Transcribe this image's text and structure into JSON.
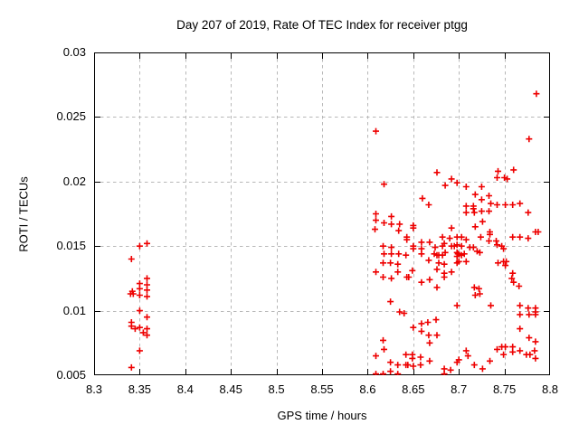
{
  "chart_data": {
    "type": "scatter",
    "title": "Day 207 of 2019, Rate Of TEC Index for receiver ptgg",
    "xlabel": "GPS time / hours",
    "ylabel": "ROTI / TECUs",
    "xlim": [
      8.3,
      8.8
    ],
    "ylim": [
      0.005,
      0.03
    ],
    "x_ticks": [
      8.3,
      8.35,
      8.4,
      8.45,
      8.5,
      8.55,
      8.6,
      8.65,
      8.7,
      8.75,
      8.8
    ],
    "x_tick_labels": [
      "8.3",
      "8.35",
      "8.4",
      "8.45",
      "8.5",
      "8.55",
      "8.6",
      "8.65",
      "8.7",
      "8.75",
      "8.8"
    ],
    "y_ticks": [
      0.005,
      0.01,
      0.015,
      0.02,
      0.025,
      0.03
    ],
    "y_tick_labels": [
      "0.005",
      "0.01",
      "0.015",
      "0.02",
      "0.025",
      "0.03"
    ],
    "grid": true,
    "legend": "none",
    "marker": "plus",
    "series": [
      {
        "name": "ROTI",
        "points": [
          [
            8.35,
            0.015
          ],
          [
            8.358,
            0.0152
          ],
          [
            8.341,
            0.014
          ],
          [
            8.358,
            0.0125
          ],
          [
            8.35,
            0.0121
          ],
          [
            8.358,
            0.012
          ],
          [
            8.342,
            0.0115
          ],
          [
            8.35,
            0.0117
          ],
          [
            8.34,
            0.0113
          ],
          [
            8.343,
            0.0113
          ],
          [
            8.35,
            0.0112
          ],
          [
            8.358,
            0.0116
          ],
          [
            8.358,
            0.0111
          ],
          [
            8.35,
            0.01
          ],
          [
            8.358,
            0.0095
          ],
          [
            8.341,
            0.0091
          ],
          [
            8.341,
            0.0088
          ],
          [
            8.35,
            0.0087
          ],
          [
            8.345,
            0.0086
          ],
          [
            8.358,
            0.0086
          ],
          [
            8.354,
            0.0083
          ],
          [
            8.358,
            0.0081
          ],
          [
            8.35,
            0.0069
          ],
          [
            8.341,
            0.0056
          ],
          [
            8.609,
            0.0239
          ],
          [
            8.785,
            0.0268
          ],
          [
            8.777,
            0.0233
          ],
          [
            8.618,
            0.0198
          ],
          [
            8.676,
            0.0207
          ],
          [
            8.692,
            0.0202
          ],
          [
            8.685,
            0.0197
          ],
          [
            8.66,
            0.0187
          ],
          [
            8.667,
            0.0182
          ],
          [
            8.609,
            0.0175
          ],
          [
            8.609,
            0.017
          ],
          [
            8.626,
            0.0173
          ],
          [
            8.618,
            0.0168
          ],
          [
            8.626,
            0.0167
          ],
          [
            8.635,
            0.0167
          ],
          [
            8.608,
            0.0163
          ],
          [
            8.634,
            0.0162
          ],
          [
            8.65,
            0.0166
          ],
          [
            8.65,
            0.0164
          ],
          [
            8.643,
            0.0157
          ],
          [
            8.643,
            0.0155
          ],
          [
            8.617,
            0.015
          ],
          [
            8.626,
            0.0149
          ],
          [
            8.65,
            0.015
          ],
          [
            8.65,
            0.0148
          ],
          [
            8.659,
            0.0153
          ],
          [
            8.668,
            0.0153
          ],
          [
            8.659,
            0.0148
          ],
          [
            8.692,
            0.0164
          ],
          [
            8.682,
            0.0157
          ],
          [
            8.69,
            0.0156
          ],
          [
            8.698,
            0.0157
          ],
          [
            8.703,
            0.0157
          ],
          [
            8.698,
            0.0151
          ],
          [
            8.674,
            0.0149
          ],
          [
            8.682,
            0.015
          ],
          [
            8.692,
            0.015
          ],
          [
            8.695,
            0.015
          ],
          [
            8.703,
            0.015
          ],
          [
            8.712,
            0.0149
          ],
          [
            8.673,
            0.0144
          ],
          [
            8.682,
            0.0143
          ],
          [
            8.698,
            0.0145
          ],
          [
            8.698,
            0.0142
          ],
          [
            8.703,
            0.0143
          ],
          [
            8.678,
            0.0137
          ],
          [
            8.698,
            0.0137
          ],
          [
            8.676,
            0.0132
          ],
          [
            8.684,
            0.0129
          ],
          [
            8.692,
            0.013
          ],
          [
            8.684,
            0.0152
          ],
          [
            8.743,
            0.0208
          ],
          [
            8.76,
            0.0209
          ],
          [
            8.742,
            0.0203
          ],
          [
            8.75,
            0.0203
          ],
          [
            8.753,
            0.0202
          ],
          [
            8.698,
            0.0199
          ],
          [
            8.708,
            0.0196
          ],
          [
            8.725,
            0.0196
          ],
          [
            8.718,
            0.019
          ],
          [
            8.733,
            0.0189
          ],
          [
            8.725,
            0.0186
          ],
          [
            8.735,
            0.0183
          ],
          [
            8.742,
            0.0182
          ],
          [
            8.751,
            0.0182
          ],
          [
            8.759,
            0.0182
          ],
          [
            8.767,
            0.0183
          ],
          [
            8.708,
            0.0181
          ],
          [
            8.716,
            0.0181
          ],
          [
            8.716,
            0.0179
          ],
          [
            8.725,
            0.0177
          ],
          [
            8.717,
            0.0176
          ],
          [
            8.708,
            0.0176
          ],
          [
            8.733,
            0.0177
          ],
          [
            8.776,
            0.0176
          ],
          [
            8.726,
            0.0169
          ],
          [
            8.718,
            0.0165
          ],
          [
            8.734,
            0.0161
          ],
          [
            8.734,
            0.0159
          ],
          [
            8.724,
            0.0157
          ],
          [
            8.708,
            0.0155
          ],
          [
            8.733,
            0.0154
          ],
          [
            8.741,
            0.0154
          ],
          [
            8.759,
            0.0157
          ],
          [
            8.767,
            0.0157
          ],
          [
            8.784,
            0.0161
          ],
          [
            8.787,
            0.0161
          ],
          [
            8.776,
            0.0156
          ],
          [
            8.742,
            0.0151
          ],
          [
            8.747,
            0.015
          ],
          [
            8.716,
            0.0149
          ],
          [
            8.749,
            0.0148
          ],
          [
            8.618,
            0.0144
          ],
          [
            8.626,
            0.0144
          ],
          [
            8.634,
            0.0144
          ],
          [
            8.642,
            0.0143
          ],
          [
            8.617,
            0.0137
          ],
          [
            8.625,
            0.0137
          ],
          [
            8.633,
            0.0136
          ],
          [
            8.609,
            0.013
          ],
          [
            8.617,
            0.0126
          ],
          [
            8.626,
            0.0125
          ],
          [
            8.633,
            0.013
          ],
          [
            8.643,
            0.0126
          ],
          [
            8.645,
            0.0126
          ],
          [
            8.649,
            0.0131
          ],
          [
            8.659,
            0.0144
          ],
          [
            8.667,
            0.0139
          ],
          [
            8.676,
            0.0143
          ],
          [
            8.678,
            0.0143
          ],
          [
            8.685,
            0.0145
          ],
          [
            8.684,
            0.0136
          ],
          [
            8.684,
            0.0126
          ],
          [
            8.659,
            0.0122
          ],
          [
            8.668,
            0.0124
          ],
          [
            8.676,
            0.0118
          ],
          [
            8.625,
            0.0107
          ],
          [
            8.635,
            0.0099
          ],
          [
            8.64,
            0.0098
          ],
          [
            8.65,
            0.0087
          ],
          [
            8.659,
            0.009
          ],
          [
            8.666,
            0.0091
          ],
          [
            8.675,
            0.0093
          ],
          [
            8.659,
            0.0084
          ],
          [
            8.667,
            0.0081
          ],
          [
            8.676,
            0.0081
          ],
          [
            8.668,
            0.0075
          ],
          [
            8.617,
            0.0077
          ],
          [
            8.618,
            0.007
          ],
          [
            8.609,
            0.0065
          ],
          [
            8.642,
            0.0066
          ],
          [
            8.649,
            0.0066
          ],
          [
            8.649,
            0.0063
          ],
          [
            8.658,
            0.0064
          ],
          [
            8.625,
            0.006
          ],
          [
            8.633,
            0.0058
          ],
          [
            8.642,
            0.0058
          ],
          [
            8.644,
            0.0058
          ],
          [
            8.65,
            0.0057
          ],
          [
            8.658,
            0.0058
          ],
          [
            8.668,
            0.0061
          ],
          [
            8.609,
            0.0051
          ],
          [
            8.617,
            0.0051
          ],
          [
            8.625,
            0.0053
          ],
          [
            8.633,
            0.0051
          ],
          [
            8.684,
            0.0055
          ],
          [
            8.691,
            0.0054
          ],
          [
            8.684,
            0.0051
          ],
          [
            8.699,
            0.0144
          ],
          [
            8.706,
            0.0144
          ],
          [
            8.72,
            0.0146
          ],
          [
            8.723,
            0.0145
          ],
          [
            8.7,
            0.0138
          ],
          [
            8.708,
            0.0138
          ],
          [
            8.743,
            0.0137
          ],
          [
            8.749,
            0.0138
          ],
          [
            8.752,
            0.0138
          ],
          [
            8.751,
            0.0135
          ],
          [
            8.759,
            0.0129
          ],
          [
            8.758,
            0.0125
          ],
          [
            8.76,
            0.0122
          ],
          [
            8.766,
            0.0119
          ],
          [
            8.717,
            0.0118
          ],
          [
            8.722,
            0.0117
          ],
          [
            8.723,
            0.0113
          ],
          [
            8.718,
            0.0112
          ],
          [
            8.735,
            0.0104
          ],
          [
            8.698,
            0.0104
          ],
          [
            8.767,
            0.0104
          ],
          [
            8.776,
            0.0102
          ],
          [
            8.784,
            0.0102
          ],
          [
            8.767,
            0.0097
          ],
          [
            8.777,
            0.0097
          ],
          [
            8.784,
            0.0097
          ],
          [
            8.784,
            0.0099
          ],
          [
            8.767,
            0.0086
          ],
          [
            8.777,
            0.0079
          ],
          [
            8.784,
            0.0076
          ],
          [
            8.742,
            0.007
          ],
          [
            8.747,
            0.0072
          ],
          [
            8.751,
            0.0072
          ],
          [
            8.749,
            0.0066
          ],
          [
            8.759,
            0.0072
          ],
          [
            8.759,
            0.0068
          ],
          [
            8.767,
            0.0069
          ],
          [
            8.774,
            0.0066
          ],
          [
            8.778,
            0.0066
          ],
          [
            8.783,
            0.0069
          ],
          [
            8.784,
            0.0063
          ],
          [
            8.708,
            0.0069
          ],
          [
            8.71,
            0.0065
          ],
          [
            8.7,
            0.0062
          ],
          [
            8.698,
            0.006
          ],
          [
            8.717,
            0.0058
          ],
          [
            8.726,
            0.0055
          ],
          [
            8.734,
            0.0061
          ]
        ]
      }
    ]
  },
  "colors": {
    "marker": "#ee0000",
    "grid": "#b8b8b8",
    "border": "#000000",
    "background": "#ffffff",
    "text": "#000000"
  }
}
